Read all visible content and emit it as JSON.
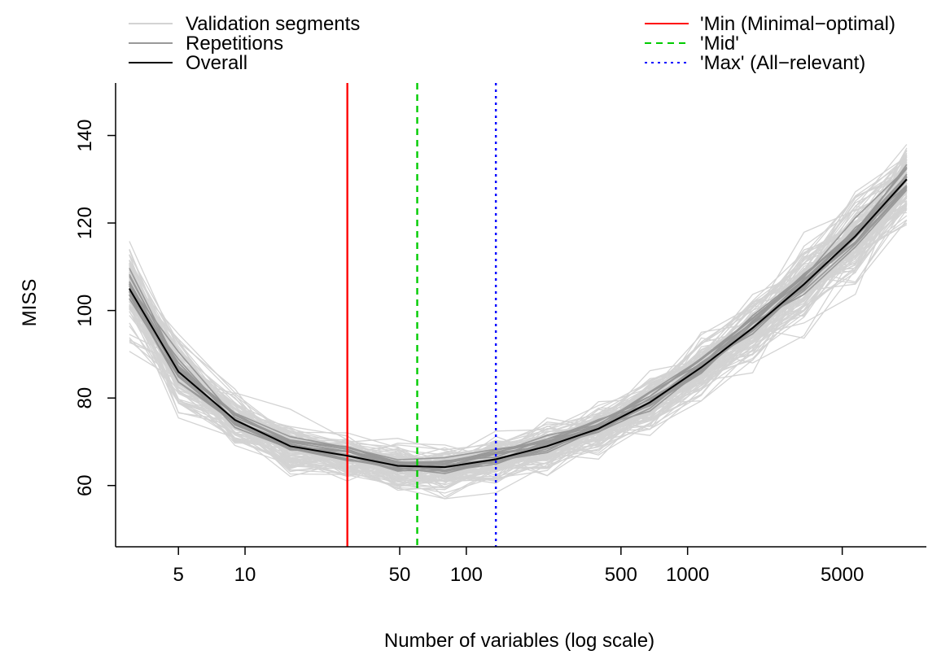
{
  "chart_data": {
    "type": "line",
    "title": "",
    "xlabel": "Number of variables (log scale)",
    "ylabel": "MISS",
    "x_scale": "log",
    "xlim": [
      2.6,
      12000
    ],
    "ylim": [
      46,
      152
    ],
    "x_ticks": [
      5,
      10,
      50,
      100,
      500,
      1000,
      5000
    ],
    "x_tick_labels": [
      "5",
      "10",
      "50",
      "100",
      "500",
      "1000",
      "5000"
    ],
    "y_ticks": [
      60,
      80,
      100,
      120,
      140
    ],
    "y_tick_labels": [
      "60",
      "80",
      "100",
      "120",
      "140"
    ],
    "grid": false,
    "legend_left": [
      {
        "label": "Validation segments",
        "color": "#d3d3d3",
        "style": "solid"
      },
      {
        "label": "Repetitions",
        "color": "#999999",
        "style": "solid"
      },
      {
        "label": "Overall",
        "color": "#000000",
        "style": "solid"
      }
    ],
    "legend_right": [
      {
        "label": "'Min (Minimal−optimal)",
        "color": "#ff0000",
        "style": "solid"
      },
      {
        "label": "'Mid'",
        "color": "#00cc00",
        "style": "dashed"
      },
      {
        "label": "'Max' (All−relevant)",
        "color": "#0000ff",
        "style": "dotted"
      }
    ],
    "x": [
      3,
      5,
      9,
      16,
      29,
      49,
      80,
      136,
      232,
      396,
      676,
      1153,
      1968,
      3359,
      5731,
      9780
    ],
    "series": [
      {
        "name": "Overall",
        "color": "#000000",
        "values": [
          105,
          86,
          75,
          69,
          66.8,
          64.5,
          64.2,
          66,
          69,
          73,
          79,
          87,
          96,
          106,
          117,
          130
        ]
      }
    ],
    "repetitions_color": "#999999",
    "validation_segments_color": "#d3d3d3",
    "vertical_lines": [
      {
        "name": "Min",
        "x": 29,
        "color": "#ff0000",
        "style": "solid"
      },
      {
        "name": "Mid",
        "x": 60,
        "color": "#00cc00",
        "style": "dashed"
      },
      {
        "name": "Max",
        "x": 136,
        "color": "#0000ff",
        "style": "dotted"
      }
    ]
  }
}
